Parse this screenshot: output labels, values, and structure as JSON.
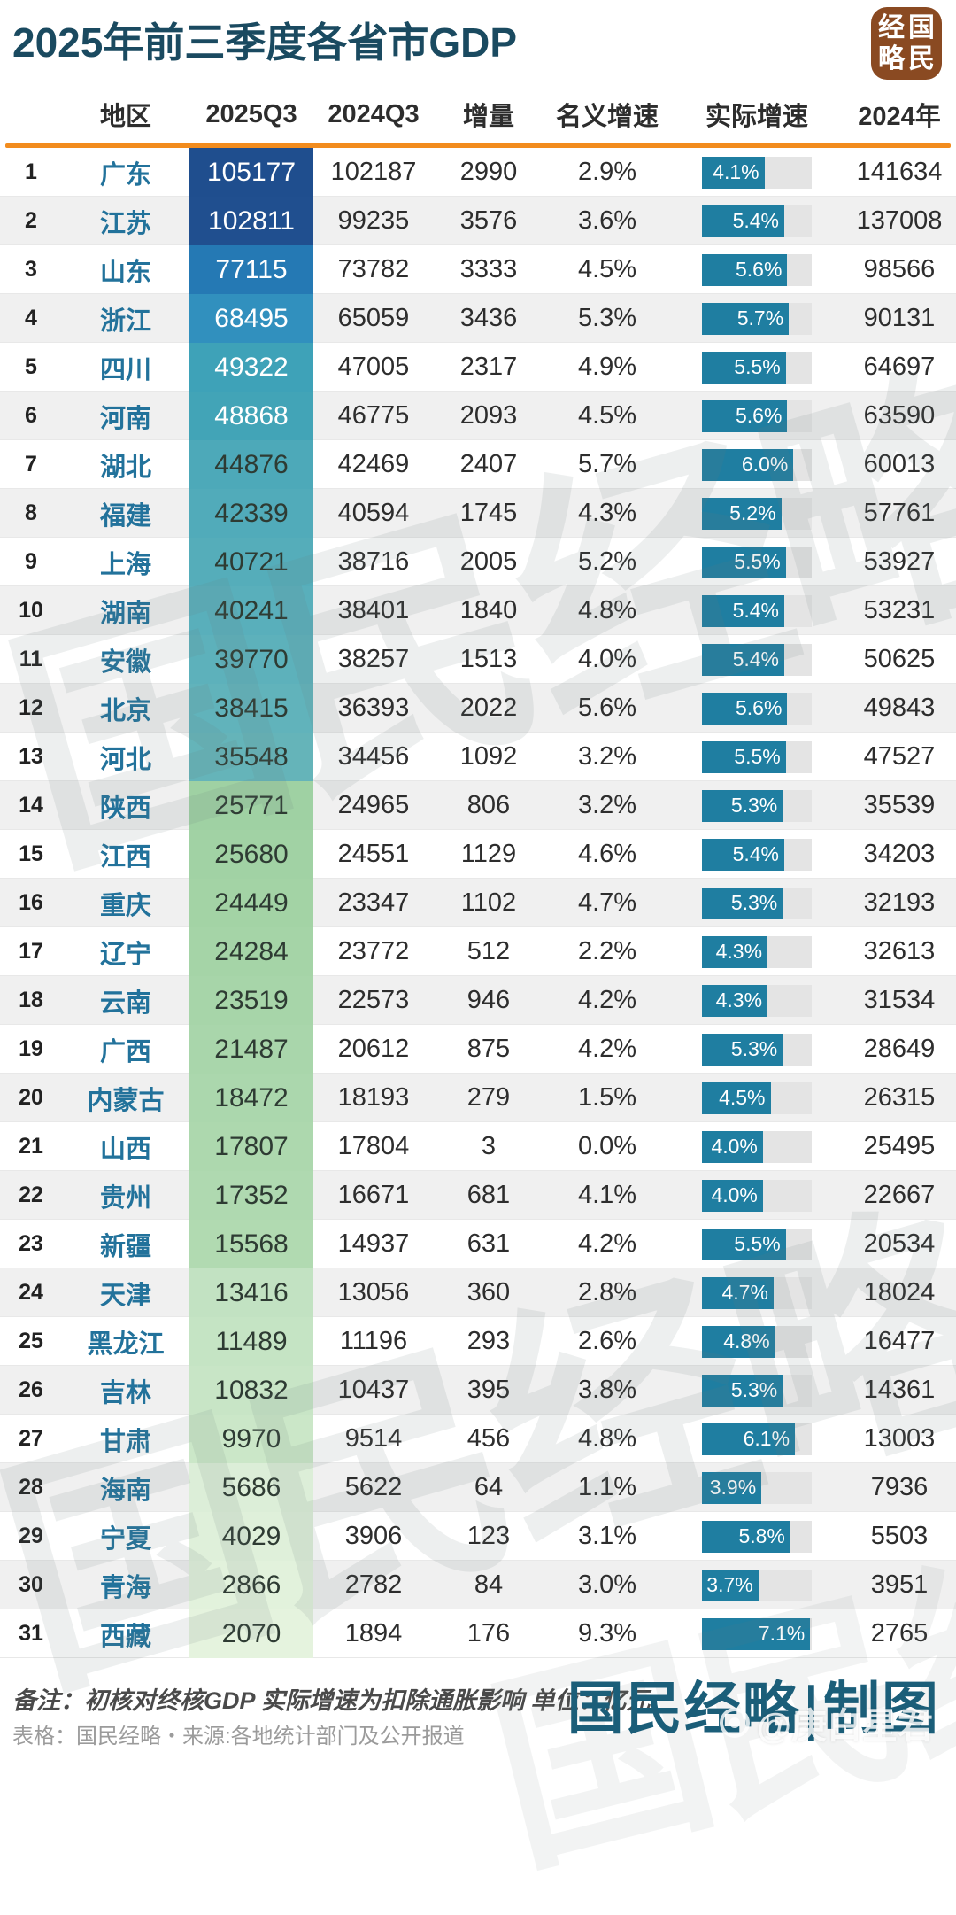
{
  "title": "2025年前三季度各省市GDP",
  "logo": {
    "full_text": "国民经略",
    "grid": [
      "经",
      "国",
      "略",
      "民"
    ],
    "bg_color": "#8A4A22"
  },
  "watermark_text": "国民经略",
  "columns": [
    "",
    "地区",
    "2025Q3",
    "2024Q3",
    "增量",
    "名义增速",
    "实际增速",
    "2024年"
  ],
  "accent": {
    "header_rule_color": "#F28C1E",
    "bar_color": "#1F7EA1",
    "bar_track_color": "#E4E4E4",
    "region_color": "#22729B",
    "title_color": "#1A4A60"
  },
  "chart_data": {
    "type": "table",
    "title": "2025年前三季度各省市GDP",
    "columns": [
      "地区",
      "2025Q3",
      "2024Q3",
      "增量",
      "名义增速",
      "实际增速",
      "2024年"
    ],
    "unit": "亿元",
    "bar_column": "实际增速",
    "bar_max_percent": 7.2,
    "rows": [
      {
        "rank": "1",
        "region": "广东",
        "gdp_2025q3": "105177",
        "gdp_2024q3": "102187",
        "increment": "2990",
        "nominal_growth": "2.9%",
        "real_growth": "4.1%",
        "real_growth_value": 4.1,
        "year_2024": "141634",
        "cell_color": "#1F4E8E",
        "light_text": true
      },
      {
        "rank": "2",
        "region": "江苏",
        "gdp_2025q3": "102811",
        "gdp_2024q3": "99235",
        "increment": "3576",
        "nominal_growth": "3.6%",
        "real_growth": "5.4%",
        "real_growth_value": 5.4,
        "year_2024": "137008",
        "cell_color": "#204F8F",
        "light_text": true
      },
      {
        "rank": "3",
        "region": "山东",
        "gdp_2025q3": "77115",
        "gdp_2024q3": "73782",
        "increment": "3333",
        "nominal_growth": "4.5%",
        "real_growth": "5.6%",
        "real_growth_value": 5.6,
        "year_2024": "98566",
        "cell_color": "#2579B4",
        "light_text": true
      },
      {
        "rank": "4",
        "region": "浙江",
        "gdp_2025q3": "68495",
        "gdp_2024q3": "65059",
        "increment": "3436",
        "nominal_growth": "5.3%",
        "real_growth": "5.7%",
        "real_growth_value": 5.7,
        "year_2024": "90131",
        "cell_color": "#3190BE",
        "light_text": true
      },
      {
        "rank": "5",
        "region": "四川",
        "gdp_2025q3": "49322",
        "gdp_2024q3": "47005",
        "increment": "2317",
        "nominal_growth": "4.9%",
        "real_growth": "5.5%",
        "real_growth_value": 5.5,
        "year_2024": "64697",
        "cell_color": "#3EA2B8",
        "light_text": true
      },
      {
        "rank": "6",
        "region": "河南",
        "gdp_2025q3": "48868",
        "gdp_2024q3": "46775",
        "increment": "2093",
        "nominal_growth": "4.5%",
        "real_growth": "5.6%",
        "real_growth_value": 5.6,
        "year_2024": "63590",
        "cell_color": "#42A4B7",
        "light_text": true
      },
      {
        "rank": "7",
        "region": "湖北",
        "gdp_2025q3": "44876",
        "gdp_2024q3": "42469",
        "increment": "2407",
        "nominal_growth": "5.7%",
        "real_growth": "6.0%",
        "real_growth_value": 6.0,
        "year_2024": "60013",
        "cell_color": "#4DA9B9",
        "light_text": false
      },
      {
        "rank": "8",
        "region": "福建",
        "gdp_2025q3": "42339",
        "gdp_2024q3": "40594",
        "increment": "1745",
        "nominal_growth": "4.3%",
        "real_growth": "5.2%",
        "real_growth_value": 5.2,
        "year_2024": "57761",
        "cell_color": "#51ABBA",
        "light_text": false
      },
      {
        "rank": "9",
        "region": "上海",
        "gdp_2025q3": "40721",
        "gdp_2024q3": "38716",
        "increment": "2005",
        "nominal_growth": "5.2%",
        "real_growth": "5.5%",
        "real_growth_value": 5.5,
        "year_2024": "53927",
        "cell_color": "#55ADBA",
        "light_text": false
      },
      {
        "rank": "10",
        "region": "湖南",
        "gdp_2025q3": "40241",
        "gdp_2024q3": "38401",
        "increment": "1840",
        "nominal_growth": "4.8%",
        "real_growth": "5.4%",
        "real_growth_value": 5.4,
        "year_2024": "53231",
        "cell_color": "#59AFBB",
        "light_text": false
      },
      {
        "rank": "11",
        "region": "安徽",
        "gdp_2025q3": "39770",
        "gdp_2024q3": "38257",
        "increment": "1513",
        "nominal_growth": "4.0%",
        "real_growth": "5.4%",
        "real_growth_value": 5.4,
        "year_2024": "50625",
        "cell_color": "#5DB1BB",
        "light_text": false
      },
      {
        "rank": "12",
        "region": "北京",
        "gdp_2025q3": "38415",
        "gdp_2024q3": "36393",
        "increment": "2022",
        "nominal_growth": "5.6%",
        "real_growth": "5.6%",
        "real_growth_value": 5.6,
        "year_2024": "49843",
        "cell_color": "#61B3BB",
        "light_text": false
      },
      {
        "rank": "13",
        "region": "河北",
        "gdp_2025q3": "35548",
        "gdp_2024q3": "34456",
        "increment": "1092",
        "nominal_growth": "3.2%",
        "real_growth": "5.5%",
        "real_growth_value": 5.5,
        "year_2024": "47527",
        "cell_color": "#65B4B9",
        "light_text": false
      },
      {
        "rank": "14",
        "region": "陕西",
        "gdp_2025q3": "25771",
        "gdp_2024q3": "24965",
        "increment": "806",
        "nominal_growth": "3.2%",
        "real_growth": "5.3%",
        "real_growth_value": 5.3,
        "year_2024": "35539",
        "cell_color": "#9FD1A3",
        "light_text": false
      },
      {
        "rank": "15",
        "region": "江西",
        "gdp_2025q3": "25680",
        "gdp_2024q3": "24551",
        "increment": "1129",
        "nominal_growth": "4.6%",
        "real_growth": "5.4%",
        "real_growth_value": 5.4,
        "year_2024": "34203",
        "cell_color": "#A1D2A4",
        "light_text": false
      },
      {
        "rank": "16",
        "region": "重庆",
        "gdp_2025q3": "24449",
        "gdp_2024q3": "23347",
        "increment": "1102",
        "nominal_growth": "4.7%",
        "real_growth": "5.3%",
        "real_growth_value": 5.3,
        "year_2024": "32193",
        "cell_color": "#A3D3A5",
        "light_text": false
      },
      {
        "rank": "17",
        "region": "辽宁",
        "gdp_2025q3": "24284",
        "gdp_2024q3": "23772",
        "increment": "512",
        "nominal_growth": "2.2%",
        "real_growth": "4.3%",
        "real_growth_value": 4.3,
        "year_2024": "32613",
        "cell_color": "#A5D4A7",
        "light_text": false
      },
      {
        "rank": "18",
        "region": "云南",
        "gdp_2025q3": "23519",
        "gdp_2024q3": "22573",
        "increment": "946",
        "nominal_growth": "4.2%",
        "real_growth": "4.3%",
        "real_growth_value": 4.3,
        "year_2024": "31534",
        "cell_color": "#A7D5A9",
        "light_text": false
      },
      {
        "rank": "19",
        "region": "广西",
        "gdp_2025q3": "21487",
        "gdp_2024q3": "20612",
        "increment": "875",
        "nominal_growth": "4.2%",
        "real_growth": "5.3%",
        "real_growth_value": 5.3,
        "year_2024": "28649",
        "cell_color": "#A9D6AB",
        "light_text": false
      },
      {
        "rank": "20",
        "region": "内蒙古",
        "gdp_2025q3": "18472",
        "gdp_2024q3": "18193",
        "increment": "279",
        "nominal_growth": "1.5%",
        "real_growth": "4.5%",
        "real_growth_value": 4.5,
        "year_2024": "26315",
        "cell_color": "#ABD7AD",
        "light_text": false
      },
      {
        "rank": "21",
        "region": "山西",
        "gdp_2025q3": "17807",
        "gdp_2024q3": "17804",
        "increment": "3",
        "nominal_growth": "0.0%",
        "real_growth": "4.0%",
        "real_growth_value": 4.0,
        "year_2024": "25495",
        "cell_color": "#ADD8AE",
        "light_text": false
      },
      {
        "rank": "22",
        "region": "贵州",
        "gdp_2025q3": "17352",
        "gdp_2024q3": "16671",
        "increment": "681",
        "nominal_growth": "4.1%",
        "real_growth": "4.0%",
        "real_growth_value": 4.0,
        "year_2024": "22667",
        "cell_color": "#AFD9B0",
        "light_text": false
      },
      {
        "rank": "23",
        "region": "新疆",
        "gdp_2025q3": "15568",
        "gdp_2024q3": "14937",
        "increment": "631",
        "nominal_growth": "4.2%",
        "real_growth": "5.5%",
        "real_growth_value": 5.5,
        "year_2024": "20534",
        "cell_color": "#B1DAB1",
        "light_text": false
      },
      {
        "rank": "24",
        "region": "天津",
        "gdp_2025q3": "13416",
        "gdp_2024q3": "13056",
        "increment": "360",
        "nominal_growth": "2.8%",
        "real_growth": "4.7%",
        "real_growth_value": 4.7,
        "year_2024": "18024",
        "cell_color": "#C2E2C2",
        "light_text": false
      },
      {
        "rank": "25",
        "region": "黑龙江",
        "gdp_2025q3": "11489",
        "gdp_2024q3": "11196",
        "increment": "293",
        "nominal_growth": "2.6%",
        "real_growth": "4.8%",
        "real_growth_value": 4.8,
        "year_2024": "16477",
        "cell_color": "#C5E4C4",
        "light_text": false
      },
      {
        "rank": "26",
        "region": "吉林",
        "gdp_2025q3": "10832",
        "gdp_2024q3": "10437",
        "increment": "395",
        "nominal_growth": "3.8%",
        "real_growth": "5.3%",
        "real_growth_value": 5.3,
        "year_2024": "14361",
        "cell_color": "#C8E5C6",
        "light_text": false
      },
      {
        "rank": "27",
        "region": "甘肃",
        "gdp_2025q3": "9970",
        "gdp_2024q3": "9514",
        "increment": "456",
        "nominal_growth": "4.8%",
        "real_growth": "6.1%",
        "real_growth_value": 6.1,
        "year_2024": "13003",
        "cell_color": "#CBE7C8",
        "light_text": false
      },
      {
        "rank": "28",
        "region": "海南",
        "gdp_2025q3": "5686",
        "gdp_2024q3": "5622",
        "increment": "64",
        "nominal_growth": "1.1%",
        "real_growth": "3.9%",
        "real_growth_value": 3.9,
        "year_2024": "7936",
        "cell_color": "#DCEED8",
        "light_text": false
      },
      {
        "rank": "29",
        "region": "宁夏",
        "gdp_2025q3": "4029",
        "gdp_2024q3": "3906",
        "increment": "123",
        "nominal_growth": "3.1%",
        "real_growth": "5.8%",
        "real_growth_value": 5.8,
        "year_2024": "5503",
        "cell_color": "#DFF0DA",
        "light_text": false
      },
      {
        "rank": "30",
        "region": "青海",
        "gdp_2025q3": "2866",
        "gdp_2024q3": "2782",
        "increment": "84",
        "nominal_growth": "3.0%",
        "real_growth": "3.7%",
        "real_growth_value": 3.7,
        "year_2024": "3951",
        "cell_color": "#E2F2DC",
        "light_text": false
      },
      {
        "rank": "31",
        "region": "西藏",
        "gdp_2025q3": "2070",
        "gdp_2024q3": "1894",
        "increment": "176",
        "nominal_growth": "9.3%",
        "real_growth": "7.1%",
        "real_growth_value": 7.1,
        "year_2024": "2765",
        "cell_color": "#E5F3DE",
        "light_text": false
      }
    ]
  },
  "footer": {
    "note": "备注：初核对终核GDP 实际增速为扣除通胀影响 单位：亿元",
    "source": "表格：国民经略・来源:各地统计部门及公开报道",
    "brand": "国民经略|制图",
    "author_watermark": "@庚白星君"
  }
}
